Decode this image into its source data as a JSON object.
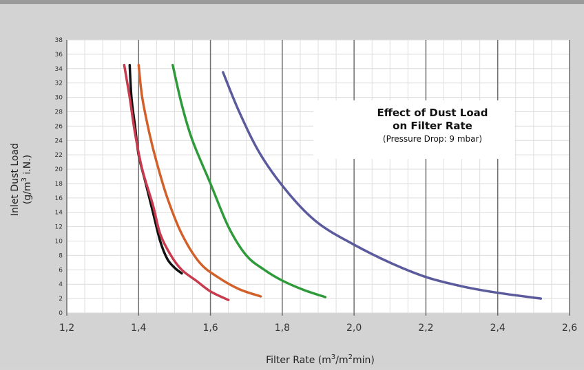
{
  "chart_data": {
    "type": "line",
    "title": "Effect of Dust Load",
    "title_line2": "on Filter Rate",
    "subtitle": "(Pressure Drop: 9 mbar)",
    "xlabel_main": "Filter Rate (m",
    "xlabel_sup1": "3",
    "xlabel_mid": "/m",
    "xlabel_sup2": "2",
    "xlabel_end": "min)",
    "ylabel_line1": "Inlet Dust Load",
    "ylabel_line2_pre": "(g/m",
    "ylabel_line2_sup": "3",
    "ylabel_line2_post": " i.N.)",
    "xlim": [
      1.2,
      2.6
    ],
    "ylim": [
      0,
      38
    ],
    "x_ticks": [
      "1,2",
      "1,4",
      "1,6",
      "1,8",
      "2,0",
      "2,2",
      "2,4",
      "2,6"
    ],
    "y_ticks": [
      "0",
      "2",
      "4",
      "6",
      "8",
      "10",
      "12",
      "14",
      "16",
      "18",
      "20",
      "22",
      "24",
      "26",
      "28",
      "30",
      "32",
      "34",
      "36",
      "38"
    ],
    "grid": true,
    "series": [
      {
        "color": "#111111",
        "x": [
          1.375,
          1.38,
          1.39,
          1.4,
          1.42,
          1.44,
          1.46,
          1.48,
          1.5,
          1.52
        ],
        "y": [
          34.5,
          30,
          26,
          22,
          18,
          14,
          10,
          7.5,
          6.3,
          5.5
        ]
      },
      {
        "color": "#c83a4e",
        "x": [
          1.36,
          1.375,
          1.39,
          1.41,
          1.44,
          1.46,
          1.49,
          1.52,
          1.56,
          1.6,
          1.65
        ],
        "y": [
          34.5,
          30,
          25,
          20,
          15,
          11,
          8,
          6,
          4.5,
          3,
          1.8
        ]
      },
      {
        "color": "#d2602a",
        "x": [
          1.4,
          1.41,
          1.43,
          1.45,
          1.48,
          1.52,
          1.57,
          1.62,
          1.68,
          1.74
        ],
        "y": [
          34.5,
          30,
          25,
          21,
          16,
          11,
          7,
          5,
          3.3,
          2.3
        ]
      },
      {
        "color": "#2f9a3a",
        "x": [
          1.495,
          1.52,
          1.55,
          1.6,
          1.65,
          1.7,
          1.75,
          1.8,
          1.86,
          1.92
        ],
        "y": [
          34.5,
          29,
          24,
          18,
          12,
          8,
          6,
          4.5,
          3.2,
          2.2
        ]
      },
      {
        "color": "#5a5a9c",
        "x": [
          1.635,
          1.68,
          1.74,
          1.82,
          1.9,
          2.0,
          2.1,
          2.2,
          2.3,
          2.4,
          2.52
        ],
        "y": [
          33.5,
          28,
          22,
          16.5,
          12.5,
          9.5,
          7,
          5,
          3.7,
          2.8,
          2
        ]
      }
    ]
  }
}
